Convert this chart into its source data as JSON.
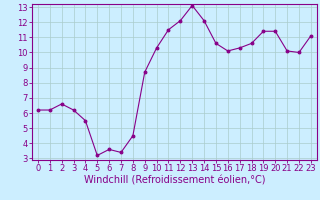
{
  "x": [
    0,
    1,
    2,
    3,
    4,
    5,
    6,
    7,
    8,
    9,
    10,
    11,
    12,
    13,
    14,
    15,
    16,
    17,
    18,
    19,
    20,
    21,
    22,
    23
  ],
  "y": [
    6.2,
    6.2,
    6.6,
    6.2,
    5.5,
    3.2,
    3.6,
    3.4,
    4.5,
    8.7,
    10.3,
    11.5,
    12.1,
    13.1,
    12.1,
    10.6,
    10.1,
    10.3,
    10.6,
    11.4,
    11.4,
    10.1,
    10.0,
    11.1
  ],
  "line_color": "#880088",
  "marker": "o",
  "marker_size": 2.0,
  "bg_color": "#cceeff",
  "grid_color": "#aacccc",
  "xlabel": "Windchill (Refroidissement éolien,°C)",
  "ylim": [
    3,
    13
  ],
  "xlim": [
    -0.5,
    23.5
  ],
  "yticks": [
    3,
    4,
    5,
    6,
    7,
    8,
    9,
    10,
    11,
    12,
    13
  ],
  "xticks": [
    0,
    1,
    2,
    3,
    4,
    5,
    6,
    7,
    8,
    9,
    10,
    11,
    12,
    13,
    14,
    15,
    16,
    17,
    18,
    19,
    20,
    21,
    22,
    23
  ],
  "tick_label_fontsize": 6.0,
  "xlabel_fontsize": 7.0,
  "line_width": 0.8,
  "spine_color": "#880088",
  "tick_color": "#880088",
  "label_color": "#880088"
}
